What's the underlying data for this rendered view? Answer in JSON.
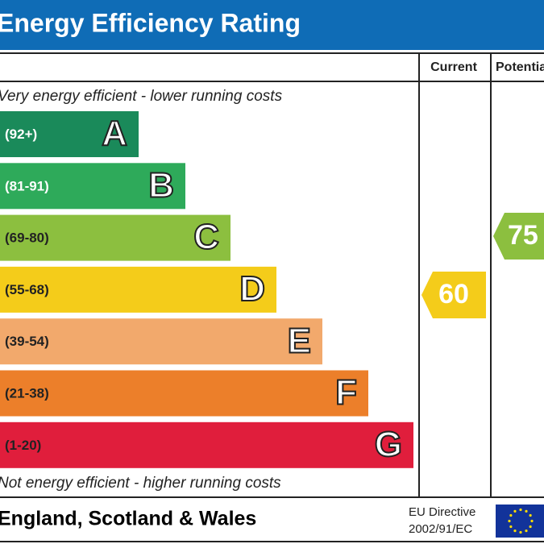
{
  "header": {
    "title": "Energy Efficiency Rating"
  },
  "columns": {
    "current": "Current",
    "potential": "Potential"
  },
  "top_note": "Very energy efficient - lower running costs",
  "bottom_note": "Not energy efficient - higher running costs",
  "ratings": [
    {
      "range": "(92+)",
      "band": "A",
      "color": "#1a8a5a",
      "text_color": "#ffffff"
    },
    {
      "range": "(81-91)",
      "band": "B",
      "color": "#2eaa5a",
      "text_color": "#ffffff"
    },
    {
      "range": "(69-80)",
      "band": "C",
      "color": "#8cbf3f",
      "text_color": "#222222"
    },
    {
      "range": "(55-68)",
      "band": "D",
      "color": "#f4cc1a",
      "text_color": "#222222"
    },
    {
      "range": "(39-54)",
      "band": "E",
      "color": "#f2a96c",
      "text_color": "#222222"
    },
    {
      "range": "(21-38)",
      "band": "F",
      "color": "#ec7f2a",
      "text_color": "#222222"
    },
    {
      "range": "(1-20)",
      "band": "G",
      "color": "#e01e3c",
      "text_color": "#222222"
    }
  ],
  "current": {
    "value": 60,
    "color": "#f4cc1a"
  },
  "potential": {
    "value": 75,
    "color": "#8cbf3f"
  },
  "footer": {
    "region": "England, Scotland & Wales",
    "directive_line1": "EU Directive",
    "directive_line2": "2002/91/EC"
  }
}
